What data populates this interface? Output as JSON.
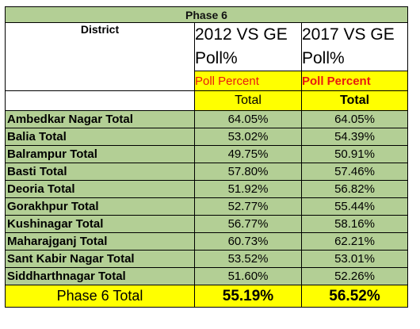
{
  "table": {
    "title": "Phase 6",
    "district_header": "District",
    "col_a_line1": "2012 VS GE",
    "col_a_line2": "Poll%",
    "col_b_line1": "2017 VS GE",
    "col_b_line2": "Poll%",
    "sub_poll_percent": "Poll Percent",
    "sub_total": "Total",
    "rows": [
      {
        "district": "Ambedkar Nagar Total",
        "a": "64.05%",
        "b": "64.05%"
      },
      {
        "district": "Balia Total",
        "a": "53.02%",
        "b": "54.39%"
      },
      {
        "district": "Balrampur Total",
        "a": "49.75%",
        "b": "50.91%"
      },
      {
        "district": "Basti Total",
        "a": "57.80%",
        "b": "57.46%"
      },
      {
        "district": "Deoria Total",
        "a": "51.92%",
        "b": "56.82%"
      },
      {
        "district": "Gorakhpur Total",
        "a": "52.77%",
        "b": "55.44%"
      },
      {
        "district": "Kushinagar Total",
        "a": "56.77%",
        "b": "58.16%"
      },
      {
        "district": "Maharajganj Total",
        "a": "60.73%",
        "b": "62.21%"
      },
      {
        "district": "Sant Kabir Nagar Total",
        "a": "53.52%",
        "b": "53.01%"
      },
      {
        "district": "Siddharthnagar Total",
        "a": "51.60%",
        "b": "52.26%"
      }
    ],
    "footer": {
      "label": "Phase 6 Total",
      "a": "55.19%",
      "b": "56.52%"
    }
  },
  "colors": {
    "green": "#b3cf95",
    "yellow": "#ffff00",
    "red_text": "#e8190f"
  }
}
